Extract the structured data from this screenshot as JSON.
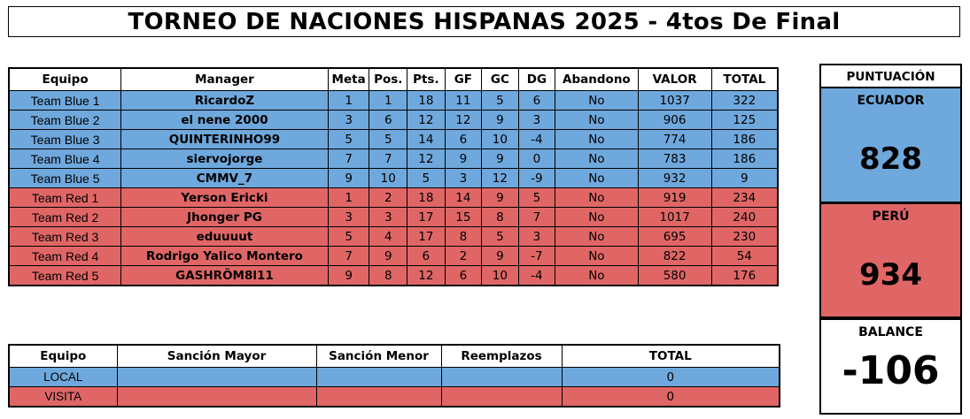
{
  "title": "TORNEO DE NACIONES HISPANAS 2025 - 4tos De Final",
  "main_table": {
    "headers": [
      "Equipo",
      "Manager",
      "Meta",
      "Pos.",
      "Pts.",
      "GF",
      "GC",
      "DG",
      "Abandono",
      "VALOR",
      "TOTAL"
    ],
    "rows": [
      [
        "Team Blue 1",
        "RicardoZ",
        "1",
        "1",
        "18",
        "11",
        "5",
        "6",
        "No",
        "1037",
        "322"
      ],
      [
        "Team Blue 2",
        "el nene 2000",
        "3",
        "6",
        "12",
        "12",
        "9",
        "3",
        "No",
        "906",
        "125"
      ],
      [
        "Team Blue 3",
        "QUINTERINHO99",
        "5",
        "5",
        "14",
        "6",
        "10",
        "-4",
        "No",
        "774",
        "186"
      ],
      [
        "Team Blue 4",
        "siervojorge",
        "7",
        "7",
        "12",
        "9",
        "9",
        "0",
        "No",
        "783",
        "186"
      ],
      [
        "Team Blue 5",
        "CMMV_7",
        "9",
        "10",
        "5",
        "3",
        "12",
        "-9",
        "No",
        "932",
        "9"
      ],
      [
        "Team Red 1",
        "Yerson Ericki",
        "1",
        "2",
        "18",
        "14",
        "9",
        "5",
        "No",
        "919",
        "234"
      ],
      [
        "Team Red 2",
        "Jhonger PG",
        "3",
        "3",
        "17",
        "15",
        "8",
        "7",
        "No",
        "1017",
        "240"
      ],
      [
        "Team Red 3",
        "eduuuut",
        "5",
        "4",
        "17",
        "8",
        "5",
        "3",
        "No",
        "695",
        "230"
      ],
      [
        "Team Red 4",
        "Rodrigo Yalico Montero",
        "7",
        "9",
        "6",
        "2",
        "9",
        "-7",
        "No",
        "822",
        "54"
      ],
      [
        "Team Red 5",
        "GASHRÖM8l11",
        "9",
        "8",
        "12",
        "6",
        "10",
        "-4",
        "No",
        "580",
        "176"
      ]
    ]
  },
  "penalty_table": {
    "headers": [
      "Equipo",
      "Sanción Mayor",
      "Sanción Menor",
      "Reemplazos",
      "TOTAL"
    ],
    "rows": [
      [
        "LOCAL",
        "",
        "",
        "",
        "0"
      ],
      [
        "VISITA",
        "",
        "",
        "",
        "0"
      ]
    ]
  },
  "side": {
    "header": "PUNTUACIÓN",
    "ecuador": {
      "label": "ECUADOR",
      "value": "828"
    },
    "peru": {
      "label": "PERÚ",
      "value": "934"
    },
    "balance": {
      "label": "BALANCE",
      "value": "-106"
    }
  },
  "colors": {
    "blue": "#6fa8dc",
    "red": "#e06666"
  }
}
